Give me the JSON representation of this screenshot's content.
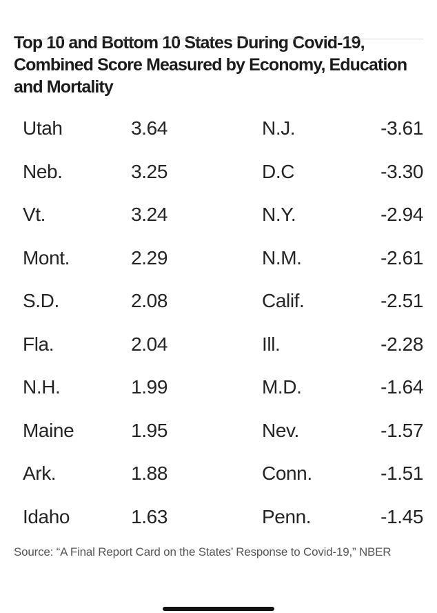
{
  "header": {
    "title_lines": [
      "Top 10 and Bottom 10 States During Covid-19,",
      "Combined Score Measured by Economy, Education",
      "and Mortality"
    ]
  },
  "table": {
    "rows": [
      {
        "l_state": "Utah",
        "l_score": "3.64",
        "r_state": "N.J.",
        "r_score": "-3.61"
      },
      {
        "l_state": "Neb.",
        "l_score": "3.25",
        "r_state": "D.C",
        "r_score": "-3.30"
      },
      {
        "l_state": "Vt.",
        "l_score": "3.24",
        "r_state": "N.Y.",
        "r_score": "-2.94"
      },
      {
        "l_state": "Mont.",
        "l_score": "2.29",
        "r_state": "N.M.",
        "r_score": "-2.61"
      },
      {
        "l_state": "S.D.",
        "l_score": "2.08",
        "r_state": "Calif.",
        "r_score": "-2.51"
      },
      {
        "l_state": "Fla.",
        "l_score": "2.04",
        "r_state": "Ill.",
        "r_score": "-2.28"
      },
      {
        "l_state": "N.H.",
        "l_score": "1.99",
        "r_state": "M.D.",
        "r_score": "-1.64"
      },
      {
        "l_state": "Maine",
        "l_score": "1.95",
        "r_state": "Nev.",
        "r_score": "-1.57"
      },
      {
        "l_state": "Ark.",
        "l_score": "1.88",
        "r_state": "Conn.",
        "r_score": "-1.51"
      },
      {
        "l_state": "Idaho",
        "l_score": "1.63",
        "r_state": "Penn.",
        "r_score": "-1.45"
      }
    ]
  },
  "footer": {
    "source": "Source: “A Final Report Card on the States’ Response to Covid-19,” NBER"
  },
  "colors": {
    "background": "#ffffff",
    "title_text": "#1b1b1b",
    "row_text": "#242424",
    "source_text": "#565656",
    "top_rule": "#d6d6d6",
    "home_indicator": "#111111"
  },
  "chart_data": {
    "type": "table",
    "title": "Top 10 and Bottom 10 States During Covid-19, Combined Score Measured by Economy, Education and Mortality",
    "groups": [
      {
        "name": "Top 10 states",
        "categories": [
          "Utah",
          "Neb.",
          "Vt.",
          "Mont.",
          "S.D.",
          "Fla.",
          "N.H.",
          "Maine",
          "Ark.",
          "Idaho"
        ],
        "values": [
          3.64,
          3.25,
          3.24,
          2.29,
          2.08,
          2.04,
          1.99,
          1.95,
          1.88,
          1.63
        ]
      },
      {
        "name": "Bottom 10 states",
        "categories": [
          "N.J.",
          "D.C",
          "N.Y.",
          "N.M.",
          "Calif.",
          "Ill.",
          "M.D.",
          "Nev.",
          "Conn.",
          "Penn."
        ],
        "values": [
          -3.61,
          -3.3,
          -2.94,
          -2.61,
          -2.51,
          -2.28,
          -1.64,
          -1.57,
          -1.51,
          -1.45
        ]
      }
    ],
    "source": "“A Final Report Card on the States’ Response to Covid-19,” NBER",
    "layout": {
      "columns": 2,
      "grid": false,
      "legend": "none"
    }
  }
}
